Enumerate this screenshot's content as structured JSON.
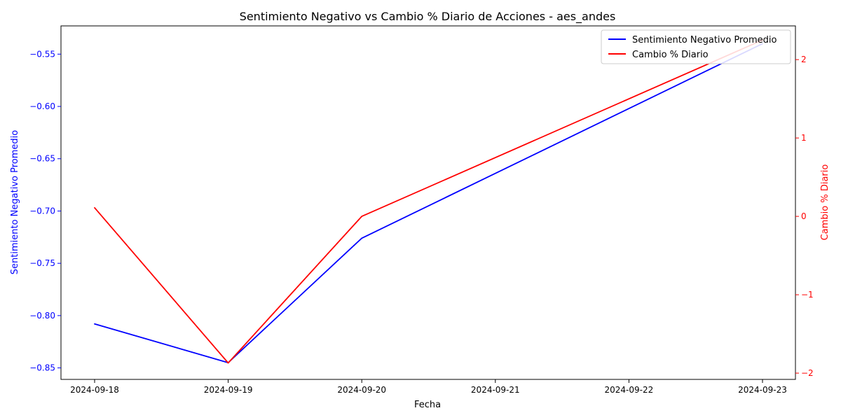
{
  "chart_data": {
    "type": "line",
    "title": "Sentimiento Negativo vs Cambio % Diario de Acciones - aes_andes",
    "xlabel": "Fecha",
    "x": [
      "2024-09-18",
      "2024-09-19",
      "2024-09-20",
      "2024-09-21",
      "2024-09-22",
      "2024-09-23"
    ],
    "y_left": {
      "label": "Sentimiento Negativo Promedio",
      "color": "#0000ff",
      "lim": [
        -0.861,
        -0.523
      ],
      "ticks": [
        "−0.85",
        "−0.80",
        "−0.75",
        "−0.70",
        "−0.65",
        "−0.60",
        "−0.55"
      ],
      "tick_values": [
        -0.85,
        -0.8,
        -0.75,
        -0.7,
        -0.65,
        -0.6,
        -0.55
      ]
    },
    "y_right": {
      "label": "Cambio % Diario",
      "color": "#ff0000",
      "lim": [
        -2.08,
        2.43
      ],
      "ticks": [
        "−2",
        "−1",
        "0",
        "1",
        "2"
      ],
      "tick_values": [
        -2,
        -1,
        0,
        1,
        2
      ]
    },
    "series": [
      {
        "name": "Sentimiento Negativo Promedio",
        "axis": "left",
        "color": "#0000ff",
        "points": [
          [
            "2024-09-18",
            -0.808
          ],
          [
            "2024-09-19",
            -0.845
          ],
          [
            "2024-09-20",
            -0.726
          ],
          [
            "2024-09-23",
            -0.54
          ]
        ]
      },
      {
        "name": "Cambio % Diario",
        "axis": "right",
        "color": "#ff0000",
        "points": [
          [
            "2024-09-18",
            0.11
          ],
          [
            "2024-09-19",
            -1.87
          ],
          [
            "2024-09-20",
            0.0
          ],
          [
            "2024-09-23",
            2.25
          ]
        ]
      }
    ],
    "legend": {
      "placement": "upper right",
      "entries": [
        "Sentimiento Negativo Promedio",
        "Cambio % Diario"
      ]
    },
    "grid": false
  }
}
